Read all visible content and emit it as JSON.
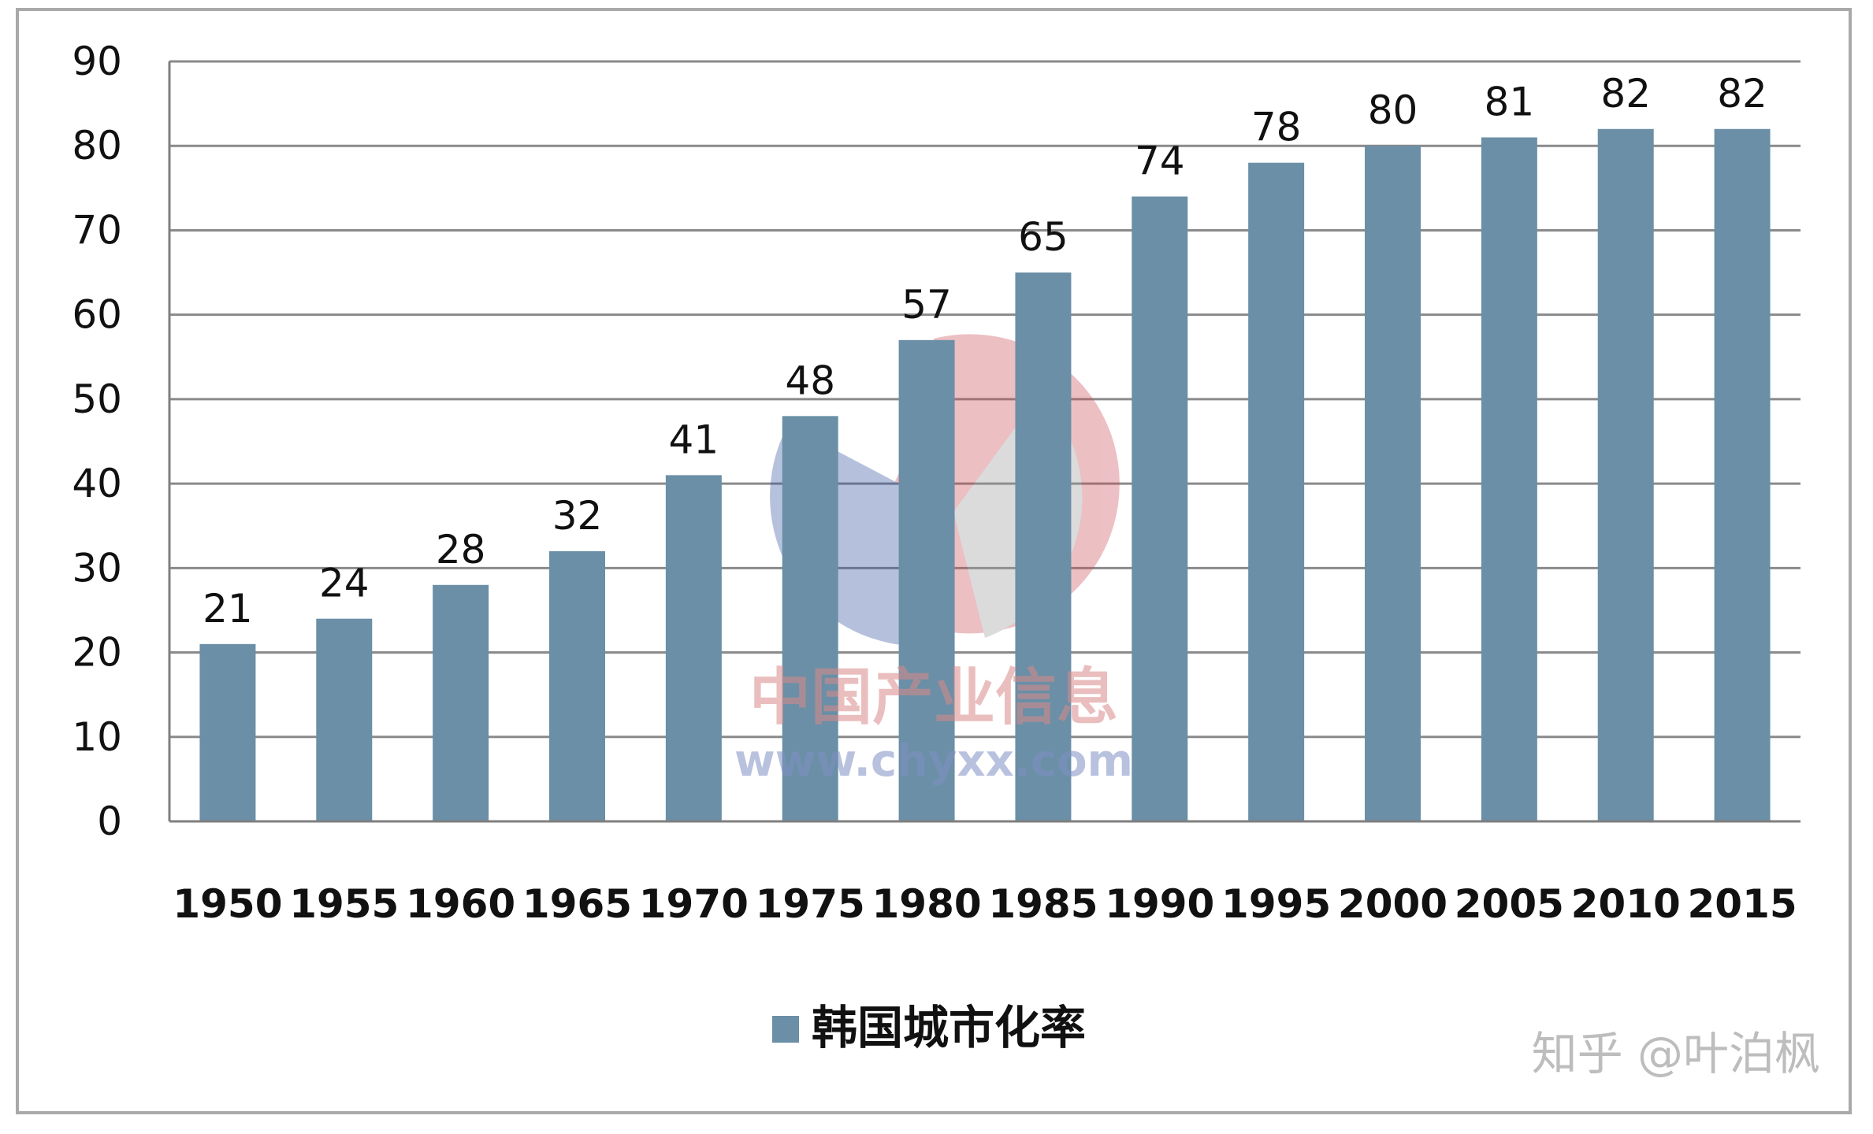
{
  "chart_data": {
    "type": "bar",
    "categories": [
      "1950",
      "1955",
      "1960",
      "1965",
      "1970",
      "1975",
      "1980",
      "1985",
      "1990",
      "1995",
      "2000",
      "2005",
      "2010",
      "2015"
    ],
    "series": [
      {
        "name": "韩国城市化率",
        "values": [
          21,
          24,
          28,
          32,
          41,
          48,
          57,
          65,
          74,
          78,
          80,
          81,
          82,
          82
        ]
      }
    ],
    "ylim": [
      0,
      90
    ],
    "yticks": [
      0,
      10,
      20,
      30,
      40,
      50,
      60,
      70,
      80,
      90
    ],
    "grid": true,
    "legend_position": "bottom-center",
    "colors": {
      "bar": "#6a8fa6",
      "grid": "#8a8a8a",
      "axis": "#7f7f7f"
    }
  },
  "watermark": {
    "cn_text": "中国产业信息",
    "url_text": "www.chyxx.com",
    "credit": "知乎 @叶泊枫"
  }
}
